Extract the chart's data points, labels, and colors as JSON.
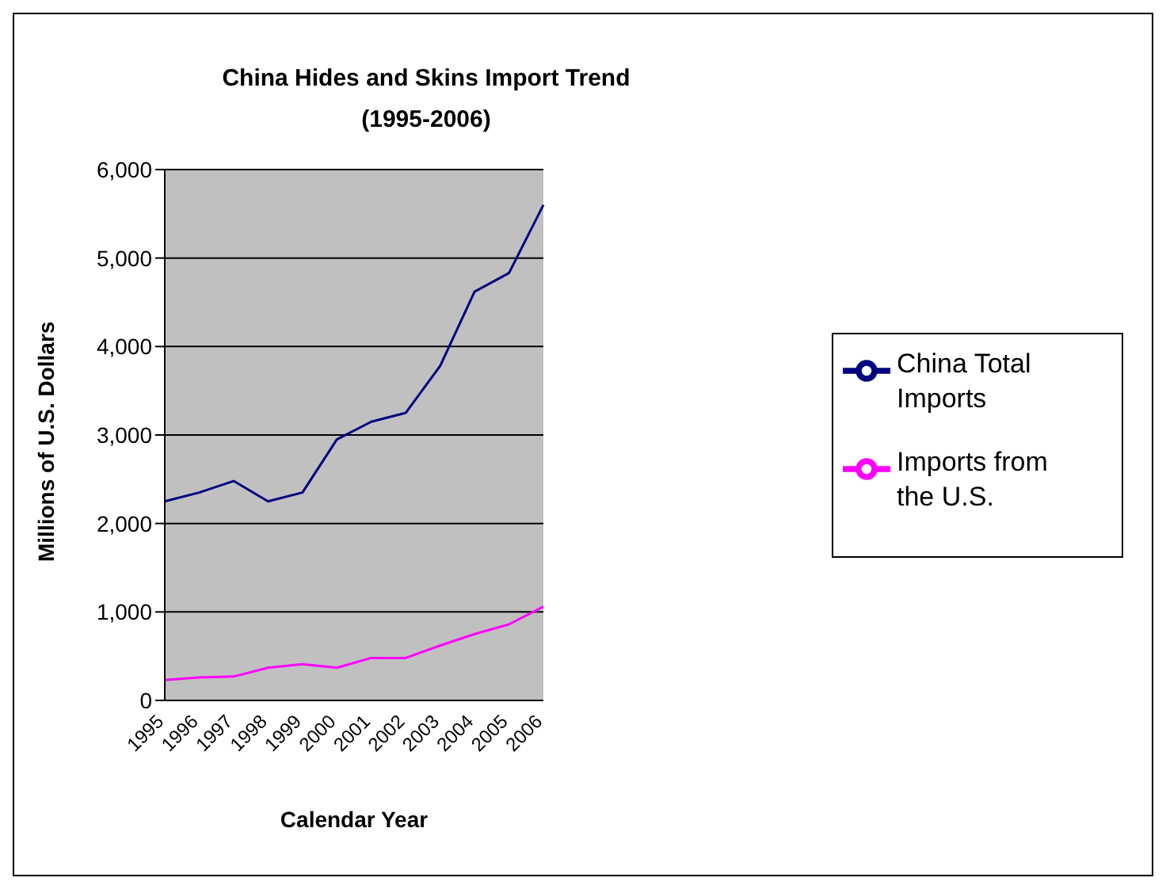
{
  "chart_data": {
    "type": "line",
    "title": "China Hides and Skins Import Trend",
    "subtitle": "(1995-2006)",
    "xlabel": "Calendar Year",
    "ylabel": "Millions of U.S. Dollars",
    "categories": [
      "1995",
      "1996",
      "1997",
      "1998",
      "1999",
      "2000",
      "2001",
      "2002",
      "2003",
      "2004",
      "2005",
      "2006"
    ],
    "series": [
      {
        "name": "China Total Imports",
        "color": "#000080",
        "values": [
          2250,
          2350,
          2480,
          2250,
          2350,
          2950,
          3150,
          3250,
          3780,
          4620,
          4830,
          5600
        ]
      },
      {
        "name": "Imports from the U.S.",
        "color": "#ff00ff",
        "values": [
          230,
          260,
          270,
          370,
          410,
          370,
          480,
          480,
          620,
          750,
          860,
          1060
        ]
      }
    ],
    "ylim": [
      0,
      6000
    ],
    "yticks": [
      {
        "value": 0,
        "label": "0"
      },
      {
        "value": 1000,
        "label": "1,000"
      },
      {
        "value": 2000,
        "label": "2,000"
      },
      {
        "value": 3000,
        "label": "3,000"
      },
      {
        "value": 4000,
        "label": "4,000"
      },
      {
        "value": 5000,
        "label": "5,000"
      },
      {
        "value": 6000,
        "label": "6,000"
      }
    ],
    "grid": "y",
    "legend": "right",
    "marker": "none",
    "line_style": "solid"
  }
}
